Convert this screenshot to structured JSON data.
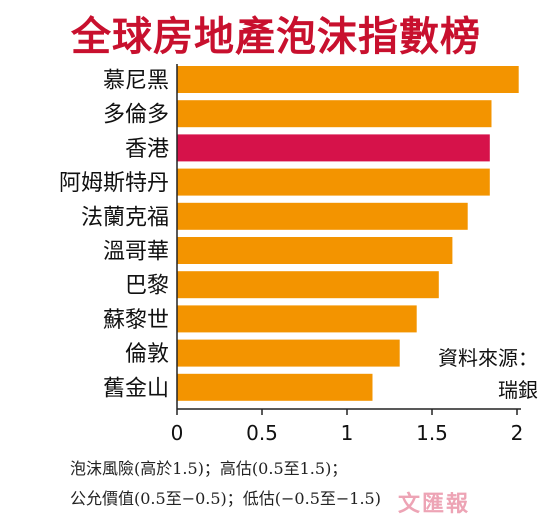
{
  "chart_data": {
    "type": "bar",
    "orientation": "horizontal",
    "title": "全球房地產泡沫指數榜",
    "categories": [
      "慕尼黑",
      "多倫多",
      "香港",
      "阿姆斯特丹",
      "法蘭克福",
      "溫哥華",
      "巴黎",
      "蘇黎世",
      "倫敦",
      "舊金山"
    ],
    "values": [
      2.01,
      1.85,
      1.84,
      1.84,
      1.71,
      1.62,
      1.54,
      1.41,
      1.31,
      1.15
    ],
    "highlight": "香港",
    "xlim": [
      0,
      2
    ],
    "xticks": [
      "0",
      "0.5",
      "1",
      "1.5",
      "2"
    ],
    "colors": {
      "bar": "#f39400",
      "highlight": "#d6124a",
      "axis": "#222222",
      "title": "#c8102e"
    },
    "grid": false,
    "legend": "none"
  },
  "source_label": "資料來源：",
  "source_name": "瑞銀",
  "footnote_line1": "泡沫風險(高於1.5)；高估(0.5至1.5)；",
  "footnote_line2": "公允價值(0.5至−0.5)；低估(−0.5至−1.5)",
  "watermark": "文匯報"
}
